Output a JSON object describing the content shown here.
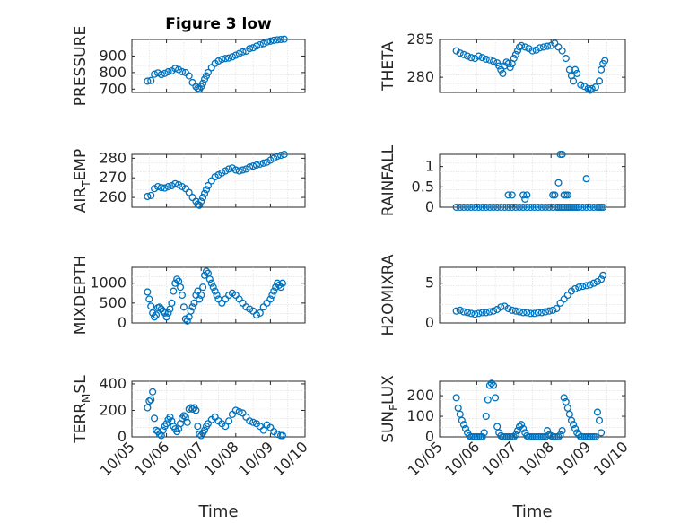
{
  "figure": {
    "title": "Figure 3 low"
  },
  "colors": {
    "marker": "#0072BD",
    "axis": "#262626",
    "grid": "#d9d9d9"
  },
  "chart_data": [
    {
      "type": "scatter",
      "title": "Figure 3 low",
      "ylabel": "PRESSURE",
      "ylabel_sub": "",
      "ylabel_tail": "",
      "xlabel": "",
      "xlim": [
        0,
        5
      ],
      "ylim": [
        680,
        1000
      ],
      "yticks": [
        700,
        800,
        900
      ],
      "xticks": [],
      "grid": true,
      "series": [
        {
          "x": [
            0.45,
            0.55,
            0.65,
            0.75,
            0.85,
            0.95,
            1.05,
            1.15,
            1.25,
            1.35,
            1.45,
            1.55,
            1.65,
            1.75,
            1.85,
            1.9,
            1.95,
            2.0,
            2.05,
            2.1,
            2.15,
            2.2,
            2.3,
            2.4,
            2.5,
            2.6,
            2.7,
            2.8,
            2.9,
            3.0,
            3.1,
            3.2,
            3.3,
            3.4,
            3.5,
            3.6,
            3.7,
            3.8,
            3.9,
            4.0,
            4.1,
            4.2,
            4.3,
            4.4
          ],
          "y": [
            748,
            752,
            790,
            798,
            788,
            795,
            805,
            810,
            825,
            818,
            805,
            800,
            780,
            740,
            715,
            705,
            700,
            715,
            735,
            760,
            780,
            800,
            830,
            855,
            870,
            880,
            885,
            888,
            895,
            905,
            915,
            925,
            930,
            945,
            950,
            960,
            968,
            975,
            985,
            990,
            995,
            998,
            1000,
            1002
          ]
        }
      ]
    },
    {
      "type": "scatter",
      "title": "",
      "ylabel": "THETA",
      "ylabel_sub": "",
      "ylabel_tail": "",
      "xlabel": "",
      "xlim": [
        0,
        5
      ],
      "ylim": [
        278,
        285
      ],
      "yticks": [
        280,
        285
      ],
      "xticks": [],
      "grid": true,
      "series": [
        {
          "x": [
            0.45,
            0.55,
            0.65,
            0.75,
            0.85,
            0.95,
            1.05,
            1.15,
            1.25,
            1.35,
            1.45,
            1.55,
            1.6,
            1.65,
            1.7,
            1.75,
            1.8,
            1.85,
            1.9,
            1.95,
            2.0,
            2.05,
            2.1,
            2.15,
            2.2,
            2.3,
            2.4,
            2.5,
            2.6,
            2.7,
            2.8,
            2.9,
            3.0,
            3.1,
            3.2,
            3.3,
            3.4,
            3.5,
            3.55,
            3.6,
            3.65,
            3.7,
            3.8,
            3.9,
            4.0,
            4.05,
            4.1,
            4.2,
            4.3,
            4.35,
            4.4,
            4.45
          ],
          "y": [
            283.5,
            283.2,
            283.0,
            282.8,
            282.6,
            282.5,
            282.8,
            282.6,
            282.4,
            282.3,
            282.1,
            281.9,
            281.5,
            281.0,
            280.5,
            281.5,
            282.0,
            281.8,
            281.3,
            281.8,
            282.5,
            283.0,
            283.5,
            284.0,
            284.2,
            284.0,
            283.8,
            283.5,
            283.6,
            283.9,
            284.0,
            284.1,
            284.2,
            284.5,
            284.0,
            283.5,
            282.5,
            281.0,
            280.2,
            279.5,
            281.0,
            280.5,
            279.0,
            278.8,
            278.5,
            278.3,
            278.5,
            278.7,
            279.5,
            281.0,
            281.8,
            282.2
          ]
        }
      ]
    },
    {
      "type": "scatter",
      "title": "",
      "ylabel": "AIR",
      "ylabel_sub": "T",
      "ylabel_tail": "EMP",
      "xlabel": "",
      "xlim": [
        0,
        5
      ],
      "ylim": [
        255,
        282
      ],
      "yticks": [
        260,
        270,
        280
      ],
      "xticks": [],
      "grid": true,
      "series": [
        {
          "x": [
            0.45,
            0.55,
            0.65,
            0.75,
            0.85,
            0.95,
            1.05,
            1.15,
            1.25,
            1.35,
            1.45,
            1.55,
            1.65,
            1.75,
            1.85,
            1.9,
            1.95,
            2.0,
            2.05,
            2.1,
            2.15,
            2.2,
            2.3,
            2.4,
            2.5,
            2.6,
            2.7,
            2.8,
            2.9,
            3.0,
            3.1,
            3.2,
            3.3,
            3.4,
            3.5,
            3.6,
            3.7,
            3.8,
            3.9,
            4.0,
            4.1,
            4.2,
            4.3,
            4.4
          ],
          "y": [
            260.5,
            261,
            264.5,
            265.5,
            265,
            264.8,
            265.5,
            266,
            267,
            266.5,
            265.5,
            264.5,
            262.5,
            260,
            258,
            256.5,
            256,
            258,
            260,
            262,
            264,
            266,
            268.5,
            270.5,
            271.5,
            272.5,
            273.5,
            274.5,
            275,
            274,
            273.5,
            274,
            274.5,
            275.5,
            276,
            276.5,
            277,
            277.5,
            278,
            279,
            280,
            281,
            281.5,
            282
          ]
        }
      ]
    },
    {
      "type": "scatter",
      "title": "",
      "ylabel": "RAINFALL",
      "ylabel_sub": "",
      "ylabel_tail": "",
      "xlabel": "",
      "xlim": [
        0,
        5
      ],
      "ylim": [
        0,
        1.3
      ],
      "yticks": [
        0,
        0.5,
        1
      ],
      "ytick_labels": [
        "0",
        "0.5",
        "1"
      ],
      "xticks": [],
      "grid": true,
      "series": [
        {
          "x": [
            0.45,
            0.55,
            0.65,
            0.75,
            0.85,
            0.95,
            1.05,
            1.15,
            1.25,
            1.35,
            1.45,
            1.55,
            1.65,
            1.75,
            1.85,
            1.95,
            2.05,
            2.15,
            2.25,
            2.35,
            2.45,
            2.55,
            2.65,
            2.75,
            2.85,
            2.95,
            3.05,
            3.15,
            3.2,
            3.25,
            3.3,
            3.35,
            3.4,
            3.45,
            3.5,
            3.55,
            3.6,
            3.65,
            3.7,
            3.75,
            3.85,
            3.95,
            4.05,
            4.15,
            4.25,
            4.3,
            4.35,
            4.4,
            1.85,
            1.95,
            2.25,
            2.3,
            2.35,
            3.05,
            3.1,
            3.2,
            3.25,
            3.3,
            3.35,
            3.4,
            3.45,
            3.95
          ],
          "y": [
            0,
            0,
            0,
            0,
            0,
            0,
            0,
            0,
            0,
            0,
            0,
            0,
            0,
            0,
            0,
            0,
            0,
            0,
            0,
            0,
            0,
            0,
            0,
            0,
            0,
            0,
            0,
            0,
            0,
            0,
            0,
            0,
            0,
            0,
            0,
            0,
            0,
            0,
            0,
            0,
            0,
            0,
            0,
            0,
            0,
            0,
            0,
            0,
            0.3,
            0.3,
            0.3,
            0.2,
            0.3,
            0.3,
            0.3,
            0.6,
            1.3,
            1.3,
            0.3,
            0.3,
            0.3,
            0.7
          ]
        }
      ]
    },
    {
      "type": "scatter",
      "title": "",
      "ylabel": "MIXDEPTH",
      "ylabel_sub": "",
      "ylabel_tail": "",
      "xlabel": "",
      "xlim": [
        0,
        5
      ],
      "ylim": [
        0,
        1400
      ],
      "yticks": [
        0,
        500,
        1000
      ],
      "xticks": [],
      "grid": true,
      "series": [
        {
          "x": [
            0.45,
            0.5,
            0.55,
            0.6,
            0.65,
            0.7,
            0.75,
            0.8,
            0.85,
            0.9,
            0.95,
            1.0,
            1.05,
            1.1,
            1.15,
            1.2,
            1.25,
            1.3,
            1.35,
            1.4,
            1.45,
            1.5,
            1.55,
            1.6,
            1.65,
            1.7,
            1.75,
            1.8,
            1.85,
            1.9,
            1.95,
            2.0,
            2.05,
            2.1,
            2.15,
            2.2,
            2.25,
            2.3,
            2.35,
            2.4,
            2.45,
            2.5,
            2.6,
            2.7,
            2.8,
            2.9,
            3.0,
            3.1,
            3.2,
            3.3,
            3.4,
            3.5,
            3.6,
            3.7,
            3.8,
            3.9,
            4.0,
            4.05,
            4.1,
            4.15,
            4.2,
            4.25,
            4.3,
            4.35
          ],
          "y": [
            780,
            600,
            420,
            250,
            150,
            200,
            380,
            400,
            350,
            300,
            250,
            150,
            250,
            350,
            500,
            800,
            1000,
            1100,
            1050,
            900,
            700,
            400,
            100,
            50,
            150,
            300,
            400,
            500,
            700,
            800,
            600,
            700,
            900,
            1200,
            1300,
            1250,
            1100,
            1000,
            900,
            800,
            700,
            600,
            500,
            600,
            700,
            750,
            700,
            600,
            500,
            400,
            350,
            300,
            200,
            250,
            400,
            500,
            600,
            700,
            800,
            900,
            1000,
            950,
            900,
            1000
          ]
        }
      ]
    },
    {
      "type": "scatter",
      "title": "",
      "ylabel": "H2OMIXRA",
      "ylabel_sub": "",
      "ylabel_tail": "",
      "xlabel": "",
      "xlim": [
        0,
        5
      ],
      "ylim": [
        0,
        7
      ],
      "yticks": [
        0,
        5
      ],
      "xticks": [],
      "grid": true,
      "series": [
        {
          "x": [
            0.45,
            0.55,
            0.65,
            0.75,
            0.85,
            0.95,
            1.05,
            1.15,
            1.25,
            1.35,
            1.45,
            1.55,
            1.65,
            1.75,
            1.85,
            1.95,
            2.05,
            2.15,
            2.25,
            2.35,
            2.45,
            2.55,
            2.65,
            2.75,
            2.85,
            2.95,
            3.05,
            3.15,
            3.25,
            3.35,
            3.45,
            3.55,
            3.65,
            3.75,
            3.85,
            3.95,
            4.05,
            4.15,
            4.25,
            4.35,
            4.4
          ],
          "y": [
            1.5,
            1.6,
            1.4,
            1.3,
            1.2,
            1.1,
            1.2,
            1.3,
            1.3,
            1.4,
            1.5,
            1.7,
            2.0,
            2.1,
            1.8,
            1.6,
            1.5,
            1.4,
            1.3,
            1.3,
            1.2,
            1.2,
            1.3,
            1.3,
            1.4,
            1.5,
            1.6,
            1.8,
            2.5,
            3.0,
            3.5,
            4.0,
            4.3,
            4.5,
            4.6,
            4.7,
            4.8,
            5.0,
            5.2,
            5.5,
            6.0
          ]
        }
      ]
    },
    {
      "type": "scatter",
      "title": "",
      "ylabel": "TERR",
      "ylabel_sub": "M",
      "ylabel_tail": "SL",
      "xlabel": "Time",
      "xlim": [
        0,
        5
      ],
      "ylim": [
        0,
        420
      ],
      "yticks": [
        0,
        200,
        400
      ],
      "xticks": [
        0,
        1,
        2,
        3,
        4,
        5
      ],
      "xtick_labels": [
        "10/05",
        "10/06",
        "10/07",
        "10/08",
        "10/09",
        "10/10"
      ],
      "grid": true,
      "series": [
        {
          "x": [
            0.45,
            0.5,
            0.55,
            0.6,
            0.65,
            0.7,
            0.75,
            0.8,
            0.85,
            0.9,
            0.95,
            1.0,
            1.05,
            1.1,
            1.15,
            1.2,
            1.25,
            1.3,
            1.35,
            1.4,
            1.45,
            1.5,
            1.55,
            1.6,
            1.65,
            1.7,
            1.75,
            1.8,
            1.85,
            1.9,
            1.95,
            2.0,
            2.05,
            2.1,
            2.15,
            2.2,
            2.3,
            2.4,
            2.5,
            2.6,
            2.7,
            2.8,
            2.9,
            3.0,
            3.1,
            3.2,
            3.3,
            3.4,
            3.5,
            3.6,
            3.7,
            3.8,
            3.9,
            4.0,
            4.1,
            4.2,
            4.3,
            4.35
          ],
          "y": [
            220,
            270,
            280,
            340,
            140,
            50,
            40,
            20,
            10,
            50,
            80,
            100,
            130,
            150,
            120,
            80,
            60,
            40,
            60,
            100,
            140,
            160,
            150,
            110,
            210,
            220,
            210,
            220,
            200,
            80,
            20,
            10,
            30,
            50,
            80,
            100,
            130,
            150,
            120,
            100,
            80,
            120,
            170,
            200,
            190,
            180,
            150,
            120,
            110,
            100,
            80,
            50,
            90,
            70,
            40,
            20,
            10,
            10
          ]
        }
      ]
    },
    {
      "type": "scatter",
      "title": "",
      "ylabel": "SUN",
      "ylabel_sub": "F",
      "ylabel_tail": "LUX",
      "xlabel": "Time",
      "xlim": [
        0,
        5
      ],
      "ylim": [
        0,
        270
      ],
      "yticks": [
        0,
        100,
        200
      ],
      "xticks": [
        0,
        1,
        2,
        3,
        4,
        5
      ],
      "xtick_labels": [
        "10/05",
        "10/06",
        "10/07",
        "10/08",
        "10/09",
        "10/10"
      ],
      "grid": true,
      "series": [
        {
          "x": [
            0.45,
            0.5,
            0.55,
            0.6,
            0.65,
            0.7,
            0.75,
            0.8,
            0.85,
            0.9,
            0.95,
            1.0,
            1.05,
            1.1,
            1.15,
            1.2,
            1.25,
            1.3,
            1.35,
            1.4,
            1.45,
            1.5,
            1.55,
            1.6,
            1.65,
            1.7,
            1.75,
            1.8,
            1.85,
            1.9,
            1.95,
            2.0,
            2.05,
            2.1,
            2.15,
            2.2,
            2.25,
            2.3,
            2.35,
            2.4,
            2.45,
            2.5,
            2.55,
            2.6,
            2.65,
            2.7,
            2.75,
            2.8,
            2.85,
            2.9,
            2.95,
            3.0,
            3.05,
            3.1,
            3.15,
            3.2,
            3.25,
            3.3,
            3.35,
            3.4,
            3.45,
            3.5,
            3.55,
            3.6,
            3.65,
            3.7,
            3.75,
            3.8,
            3.85,
            3.9,
            3.95,
            4.0,
            4.05,
            4.1,
            4.15,
            4.2,
            4.25,
            4.3,
            4.35
          ],
          "y": [
            190,
            140,
            110,
            80,
            60,
            40,
            20,
            5,
            0,
            0,
            0,
            0,
            0,
            0,
            0,
            20,
            100,
            180,
            250,
            260,
            250,
            190,
            50,
            20,
            5,
            0,
            0,
            0,
            0,
            0,
            0,
            0,
            10,
            30,
            50,
            60,
            40,
            20,
            5,
            0,
            0,
            0,
            0,
            0,
            0,
            0,
            0,
            0,
            0,
            30,
            10,
            5,
            0,
            0,
            0,
            0,
            10,
            30,
            190,
            170,
            140,
            110,
            80,
            60,
            40,
            20,
            10,
            0,
            0,
            0,
            0,
            0,
            0,
            0,
            0,
            0,
            120,
            80,
            20
          ]
        }
      ]
    }
  ]
}
